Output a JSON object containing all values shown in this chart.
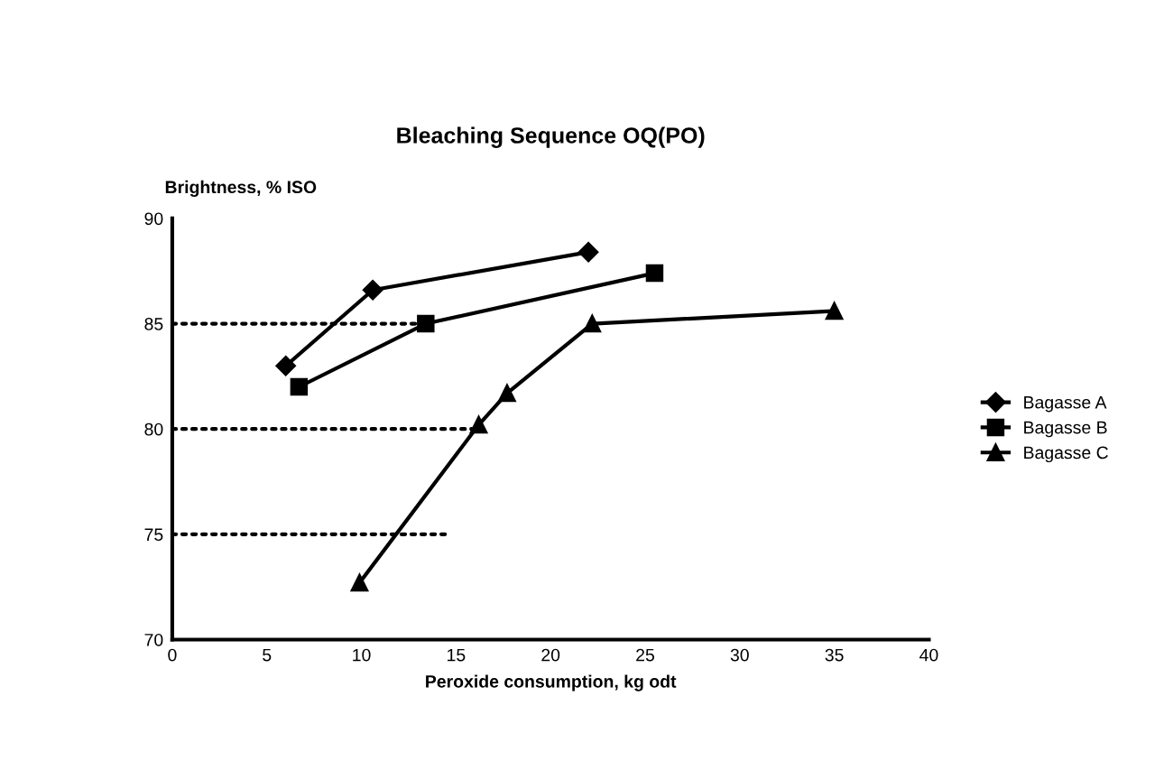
{
  "chart_data": {
    "type": "line",
    "title": "Bleaching Sequence OQ(PO)",
    "xlabel": "Peroxide consumption, kg odt",
    "ylabel": "Brightness, % ISO",
    "series": [
      {
        "name": "Bagasse A",
        "color": "#000000",
        "marker": "diamond",
        "x": [
          6.0,
          10.6,
          22.0
        ],
        "values": [
          83.0,
          86.6,
          88.4
        ]
      },
      {
        "name": "Bagasse B",
        "color": "#000000",
        "marker": "square",
        "x": [
          6.7,
          13.4,
          25.5
        ],
        "values": [
          82.0,
          85.0,
          87.4
        ]
      },
      {
        "name": "Bagasse C",
        "color": "#000000",
        "marker": "triangle",
        "x": [
          9.9,
          16.2,
          17.7,
          22.2,
          35.0
        ],
        "values": [
          72.7,
          80.2,
          81.7,
          85.0,
          85.6
        ]
      },
      {
        "color": "#000000",
        "marker": "none",
        "line_style": "dotted",
        "x": [
          0,
          13.4
        ],
        "values": [
          85,
          85
        ]
      },
      {
        "color": "#000000",
        "marker": "none",
        "line_style": "dotted",
        "x": [
          0,
          16.2
        ],
        "values": [
          80,
          80
        ]
      },
      {
        "color": "#000000",
        "marker": "none",
        "line_style": "dotted",
        "x": [
          0,
          14.5
        ],
        "values": [
          75,
          75
        ]
      }
    ],
    "xlim": [
      0,
      40
    ],
    "xticks": [
      0,
      5,
      10,
      15,
      20,
      25,
      30,
      35,
      40
    ],
    "ylim": [
      70,
      90
    ],
    "yticks": [
      70,
      75,
      80,
      85,
      90
    ],
    "grid": false,
    "legend": "right"
  }
}
